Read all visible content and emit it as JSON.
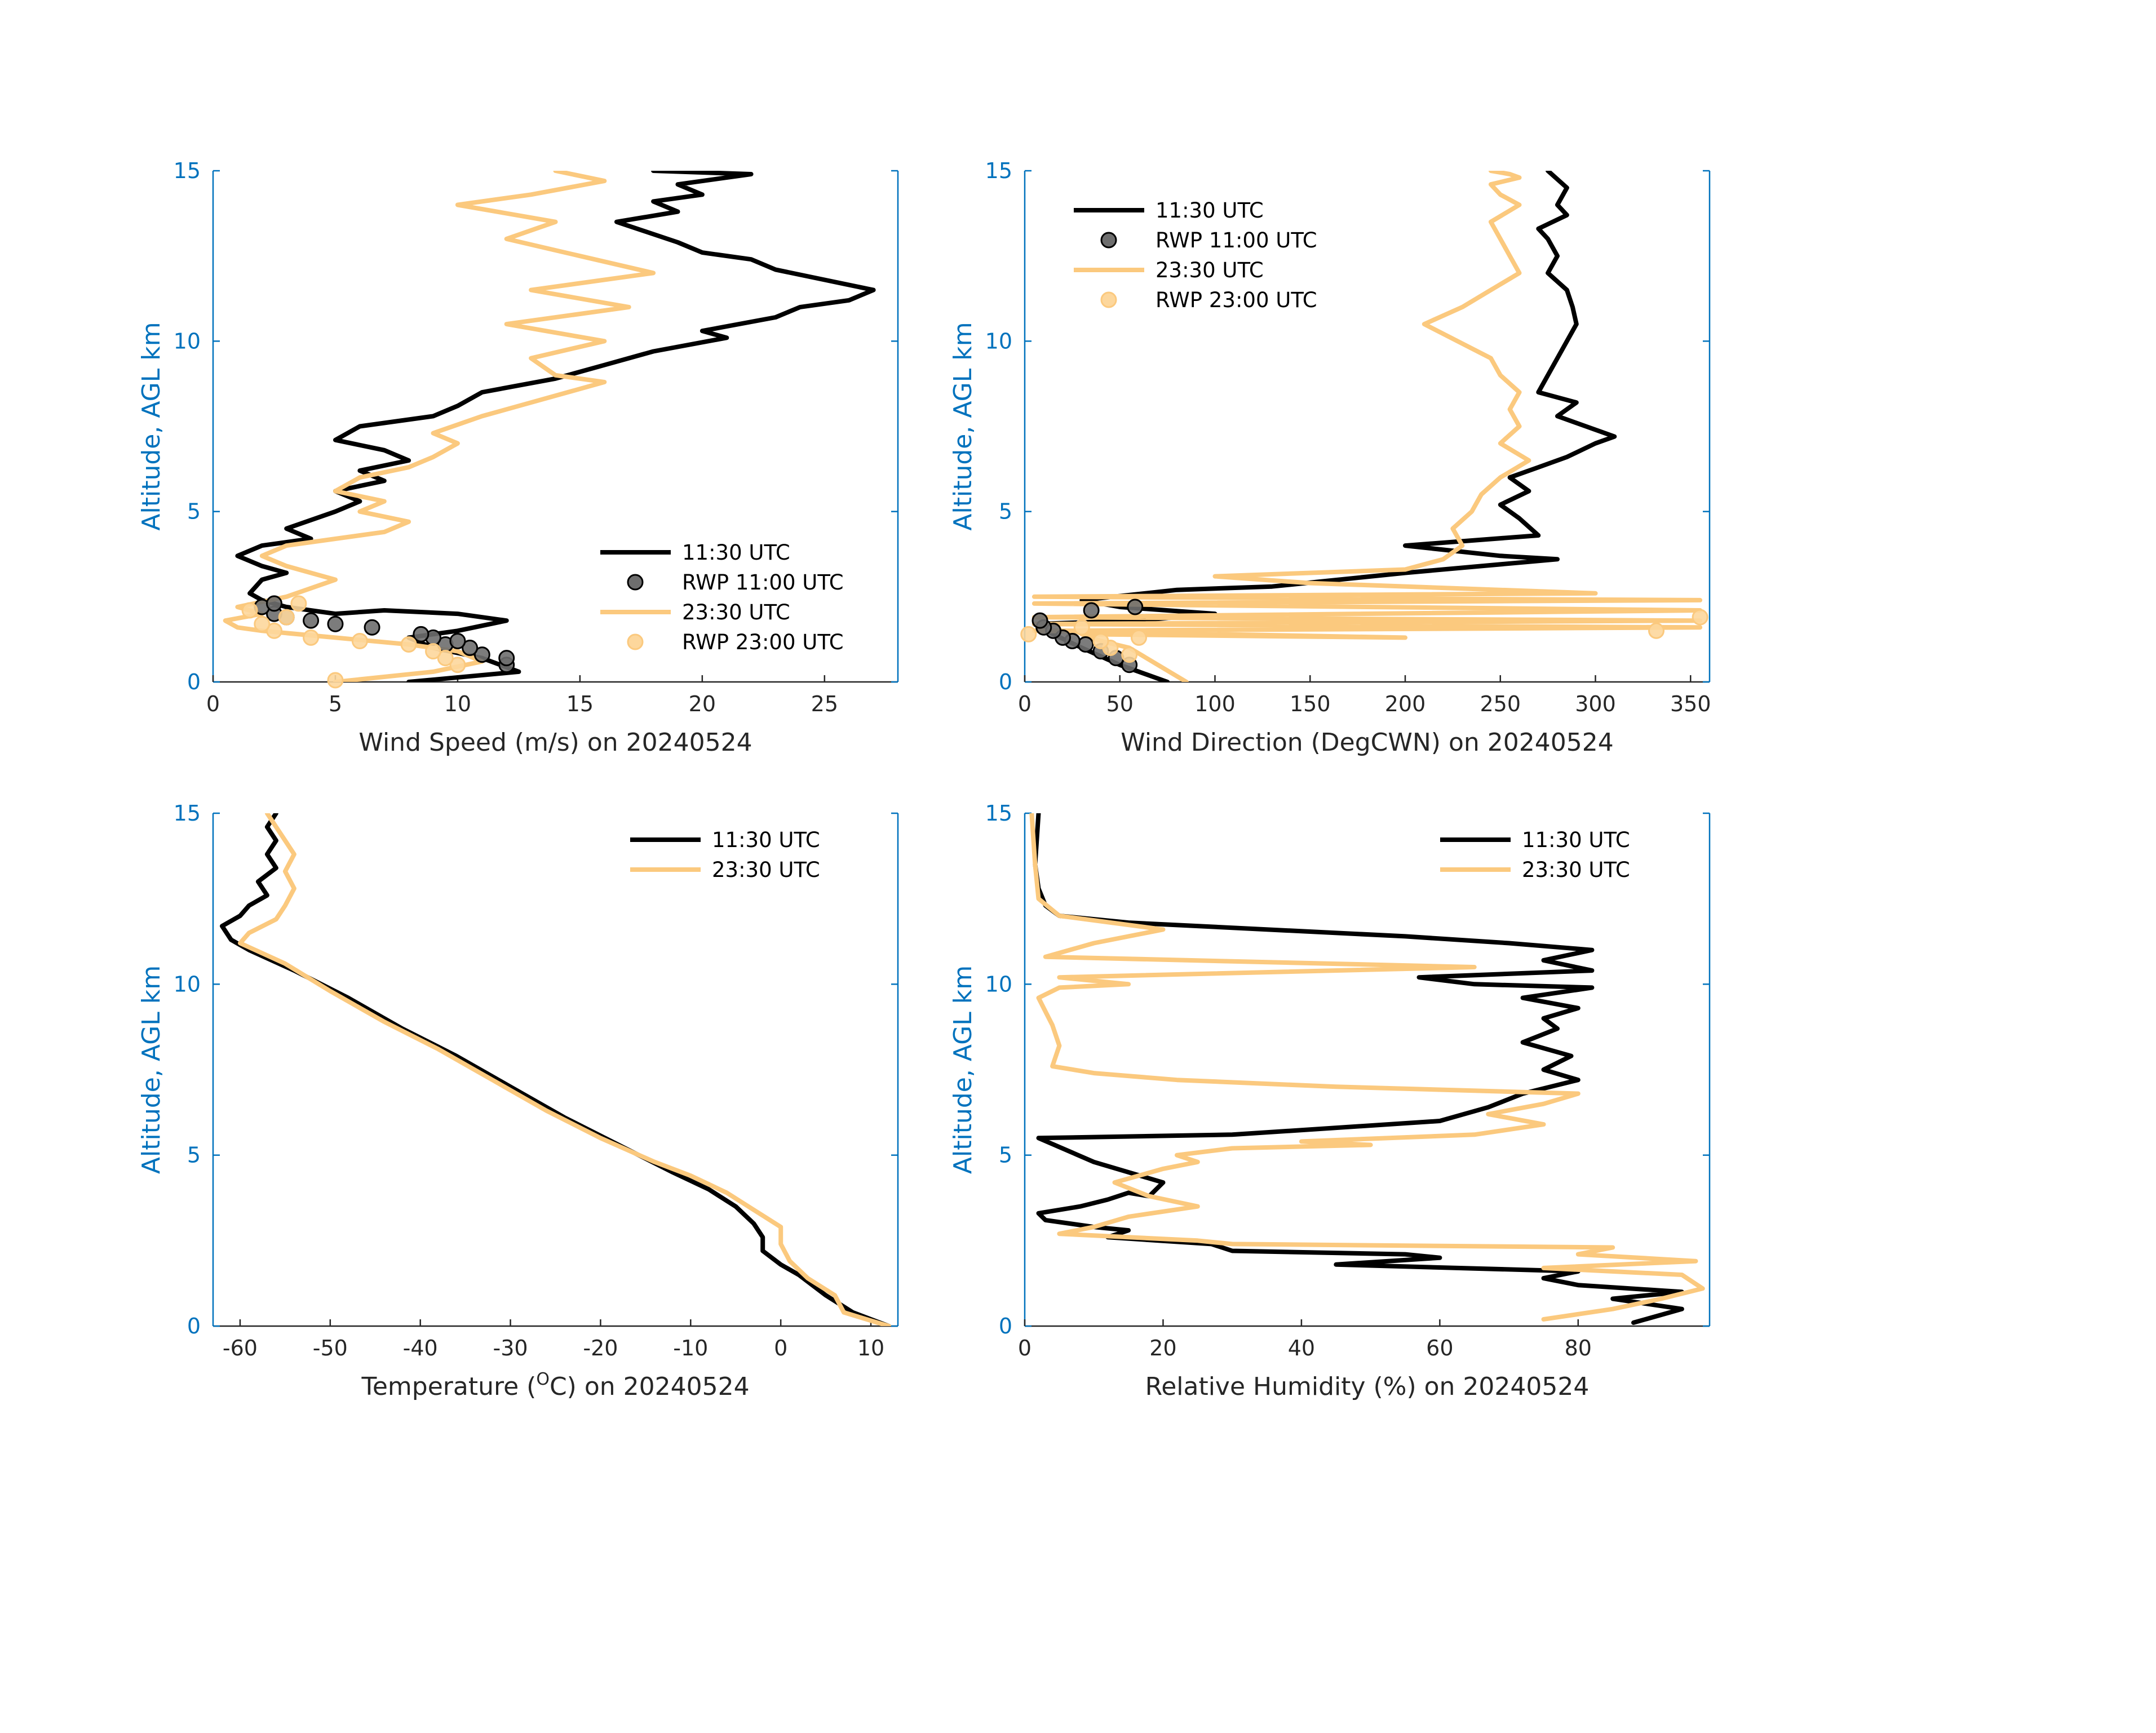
{
  "colors": {
    "black_series": "#000000",
    "orange_series": "#fbc97e",
    "axis_blue": "#0072bd",
    "rwp_black_fill": "#6e6e6e",
    "rwp_orange_fill": "#fdd79c"
  },
  "chart_data": [
    {
      "id": "wind-speed",
      "type": "line",
      "xlabel": "Wind Speed (m/s) on 20240524",
      "ylabel": "Altitude, AGL km",
      "xlim": [
        0,
        28
      ],
      "ylim": [
        0,
        15
      ],
      "xticks": [
        0,
        5,
        10,
        15,
        20,
        25
      ],
      "xtick_labels": [
        "0",
        "5",
        "10",
        "15",
        "20",
        "25"
      ],
      "yticks": [
        0,
        5,
        10,
        15
      ],
      "ytick_labels": [
        "0",
        "5",
        "10",
        "15"
      ],
      "legend": {
        "position": "lower-right",
        "entries": [
          {
            "label": "11:30 UTC",
            "kind": "line",
            "color": "#000000"
          },
          {
            "label": "RWP 11:00 UTC",
            "kind": "marker",
            "color": "#000000",
            "fill": "#6e6e6e"
          },
          {
            "label": "23:30 UTC",
            "kind": "line",
            "color": "#fbc97e"
          },
          {
            "label": "RWP 23:00 UTC",
            "kind": "marker",
            "color": "#fbc97e",
            "fill": "#fdd79c"
          }
        ]
      },
      "series": [
        {
          "name": "11:30 UTC",
          "color": "#000000",
          "x": [
            8,
            12.5,
            11,
            9,
            8,
            10,
            12,
            10,
            7,
            5,
            3,
            2,
            1.5,
            2,
            3,
            2,
            1,
            2,
            4,
            3,
            5,
            6,
            5,
            7,
            6,
            8,
            7,
            5,
            6,
            9,
            10,
            11,
            14,
            16,
            18,
            21,
            20,
            23,
            24,
            26,
            27,
            25,
            23,
            22,
            20,
            19,
            16.5,
            19,
            18,
            20,
            19,
            22,
            18
          ],
          "y": [
            0,
            0.3,
            0.7,
            1.0,
            1.3,
            1.5,
            1.8,
            2.0,
            2.1,
            2.0,
            2.2,
            2.4,
            2.6,
            3.0,
            3.2,
            3.4,
            3.7,
            4.0,
            4.2,
            4.5,
            5.0,
            5.3,
            5.6,
            5.9,
            6.2,
            6.5,
            6.8,
            7.1,
            7.5,
            7.8,
            8.1,
            8.5,
            8.9,
            9.3,
            9.7,
            10.1,
            10.3,
            10.7,
            11.0,
            11.2,
            11.5,
            11.8,
            12.1,
            12.4,
            12.6,
            12.9,
            13.5,
            13.8,
            14.1,
            14.3,
            14.6,
            14.9,
            15
          ]
        },
        {
          "name": "23:30 UTC",
          "color": "#fbc97e",
          "x": [
            5,
            9,
            11,
            10,
            8,
            5,
            2,
            1,
            0.5,
            2,
            1,
            3,
            5,
            3,
            2,
            3,
            5,
            7,
            8,
            6,
            7,
            5,
            6,
            8,
            9,
            10,
            9,
            11,
            13,
            16,
            14,
            13,
            16,
            12,
            17,
            13,
            18,
            15,
            12,
            14,
            10,
            13,
            16,
            14
          ],
          "y": [
            0,
            0.3,
            0.6,
            0.9,
            1.1,
            1.3,
            1.5,
            1.6,
            1.8,
            2.0,
            2.2,
            2.5,
            3.0,
            3.4,
            3.7,
            4.0,
            4.2,
            4.4,
            4.7,
            5.0,
            5.3,
            5.6,
            6.0,
            6.3,
            6.6,
            7.0,
            7.3,
            7.8,
            8.2,
            8.8,
            9.0,
            9.5,
            10.0,
            10.5,
            11.0,
            11.5,
            12.0,
            12.5,
            13.0,
            13.5,
            14.0,
            14.3,
            14.7,
            15
          ]
        }
      ],
      "markers": [
        {
          "name": "RWP 11:00 UTC",
          "color": "#000000",
          "fill": "#6e6e6e",
          "x": [
            12,
            12,
            11,
            10.5,
            9.5,
            10,
            9,
            8.5,
            6.5,
            5,
            4,
            3,
            2.5,
            2,
            2.5
          ],
          "y": [
            0.5,
            0.7,
            0.8,
            1.0,
            1.1,
            1.2,
            1.3,
            1.4,
            1.6,
            1.7,
            1.8,
            1.9,
            2.0,
            2.2,
            2.3
          ]
        },
        {
          "name": "RWP 23:00 UTC",
          "color": "#fbc97e",
          "fill": "#fdd79c",
          "x": [
            5,
            10,
            9.5,
            9,
            8,
            6,
            4,
            2.5,
            2,
            3,
            1.5,
            3.5
          ],
          "y": [
            0.05,
            0.5,
            0.7,
            0.9,
            1.1,
            1.2,
            1.3,
            1.5,
            1.7,
            1.9,
            2.1,
            2.3
          ]
        }
      ]
    },
    {
      "id": "wind-direction",
      "type": "line",
      "xlabel": "Wind Direction (DegCWN) on 20240524",
      "ylabel": "Altitude, AGL km",
      "xlim": [
        0,
        360
      ],
      "ylim": [
        0,
        15
      ],
      "xticks": [
        0,
        50,
        100,
        150,
        200,
        250,
        300,
        350
      ],
      "xtick_labels": [
        "0",
        "50",
        "100",
        "150",
        "200",
        "250",
        "300",
        "350"
      ],
      "yticks": [
        0,
        5,
        10,
        15
      ],
      "ytick_labels": [
        "0",
        "5",
        "10",
        "15"
      ],
      "legend": {
        "position": "upper-left",
        "entries": [
          {
            "label": "11:30 UTC",
            "kind": "line",
            "color": "#000000"
          },
          {
            "label": "RWP 11:00 UTC",
            "kind": "marker",
            "color": "#000000",
            "fill": "#6e6e6e"
          },
          {
            "label": "23:30 UTC",
            "kind": "line",
            "color": "#fbc97e"
          },
          {
            "label": "RWP 23:00 UTC",
            "kind": "marker",
            "color": "#fbc97e",
            "fill": "#fdd79c"
          }
        ]
      },
      "series": [
        {
          "name": "11:30 UTC",
          "color": "#000000",
          "x": [
            75,
            50,
            30,
            15,
            5,
            60,
            100,
            50,
            30,
            80,
            130,
            200,
            280,
            250,
            200,
            270,
            260,
            250,
            265,
            255,
            270,
            285,
            300,
            310,
            295,
            280,
            290,
            270,
            275,
            280,
            285,
            290,
            288,
            285,
            275,
            280,
            275,
            270,
            285,
            280,
            285,
            275
          ],
          "y": [
            0,
            0.5,
            1.0,
            1.4,
            1.7,
            1.8,
            2.0,
            2.2,
            2.4,
            2.7,
            2.8,
            3.2,
            3.6,
            3.7,
            4.0,
            4.3,
            4.8,
            5.2,
            5.6,
            6.0,
            6.3,
            6.6,
            7.0,
            7.2,
            7.5,
            7.8,
            8.2,
            8.5,
            9.0,
            9.5,
            10.0,
            10.5,
            11.0,
            11.5,
            12.0,
            12.5,
            13.0,
            13.3,
            13.7,
            14.0,
            14.5,
            15
          ]
        },
        {
          "name": "23:30 UTC",
          "color": "#fbc97e",
          "x": [
            85,
            70,
            55,
            40,
            30,
            200,
            5,
            355,
            5,
            355,
            5,
            355,
            5,
            355,
            5,
            300,
            150,
            100,
            200,
            220,
            230,
            225,
            235,
            240,
            250,
            265,
            250,
            260,
            255,
            260,
            250,
            245,
            210,
            230,
            245,
            260,
            255,
            250,
            245,
            260,
            250,
            245,
            260,
            255,
            245
          ],
          "y": [
            0,
            0.5,
            1.0,
            1.2,
            1.4,
            1.3,
            1.5,
            1.6,
            1.7,
            1.8,
            1.9,
            2.1,
            2.3,
            2.4,
            2.5,
            2.6,
            2.9,
            3.1,
            3.3,
            3.6,
            4.0,
            4.5,
            5.0,
            5.5,
            6.0,
            6.5,
            7.0,
            7.5,
            8.0,
            8.5,
            9.0,
            9.5,
            10.5,
            11.0,
            11.5,
            12.0,
            12.5,
            13.0,
            13.5,
            14.0,
            14.3,
            14.6,
            14.8,
            14.9,
            15
          ]
        }
      ],
      "markers": [
        {
          "name": "RWP 11:00 UTC",
          "color": "#000000",
          "fill": "#6e6e6e",
          "x": [
            55,
            48,
            40,
            32,
            25,
            20,
            15,
            10,
            8,
            35,
            58
          ],
          "y": [
            0.5,
            0.7,
            0.9,
            1.1,
            1.2,
            1.3,
            1.5,
            1.6,
            1.8,
            2.1,
            2.2
          ]
        },
        {
          "name": "RWP 23:00 UTC",
          "color": "#fbc97e",
          "fill": "#fdd79c",
          "x": [
            2,
            55,
            45,
            40,
            60,
            30,
            332,
            355
          ],
          "y": [
            1.4,
            0.8,
            1.0,
            1.2,
            1.3,
            1.6,
            1.5,
            1.9
          ]
        }
      ]
    },
    {
      "id": "temperature",
      "type": "line",
      "xlabel_prefix": "Temperature (",
      "xlabel_sup": "O",
      "xlabel_suffix": "C) on 20240524",
      "ylabel": "Altitude, AGL km",
      "xlim": [
        -63,
        13
      ],
      "ylim": [
        0,
        15
      ],
      "xticks": [
        -60,
        -50,
        -40,
        -30,
        -20,
        -10,
        0,
        10
      ],
      "xtick_labels": [
        "-60",
        "-50",
        "-40",
        "-30",
        "-20",
        "-10",
        "0",
        "10"
      ],
      "yticks": [
        0,
        5,
        10,
        15
      ],
      "ytick_labels": [
        "0",
        "5",
        "10",
        "15"
      ],
      "legend": {
        "position": "upper-right",
        "entries": [
          {
            "label": "11:30 UTC",
            "kind": "line",
            "color": "#000000"
          },
          {
            "label": "23:30 UTC",
            "kind": "line",
            "color": "#fbc97e"
          }
        ]
      },
      "series": [
        {
          "name": "11:30 UTC",
          "color": "#000000",
          "x": [
            12,
            8,
            5,
            2,
            0,
            -2,
            -2,
            -3,
            -5,
            -8,
            -12,
            -18,
            -24,
            -30,
            -36,
            -42,
            -48,
            -54,
            -59,
            -61,
            -62,
            -60,
            -59,
            -57,
            -58,
            -56,
            -57,
            -56,
            -57,
            -56
          ],
          "y": [
            0,
            0.4,
            0.9,
            1.5,
            1.8,
            2.2,
            2.6,
            3.0,
            3.5,
            4.0,
            4.5,
            5.3,
            6.1,
            7.0,
            7.9,
            8.7,
            9.6,
            10.4,
            11.0,
            11.3,
            11.7,
            12.0,
            12.3,
            12.6,
            13.0,
            13.4,
            13.8,
            14.2,
            14.6,
            15
          ]
        },
        {
          "name": "23:30 UTC",
          "color": "#fbc97e",
          "x": [
            12,
            7,
            6,
            3,
            1,
            0,
            0,
            -3,
            -6,
            -10,
            -14,
            -20,
            -26,
            -32,
            -38,
            -44,
            -50,
            -55,
            -60,
            -59,
            -56,
            -55,
            -54,
            -55,
            -54,
            -55,
            -56,
            -57
          ],
          "y": [
            0,
            0.4,
            0.9,
            1.4,
            1.9,
            2.4,
            2.9,
            3.4,
            3.9,
            4.4,
            4.8,
            5.5,
            6.3,
            7.2,
            8.1,
            8.9,
            9.8,
            10.6,
            11.2,
            11.5,
            11.9,
            12.3,
            12.8,
            13.3,
            13.8,
            14.2,
            14.6,
            15
          ]
        }
      ]
    },
    {
      "id": "relative-humidity",
      "type": "line",
      "xlabel": "Relative Humidity (%) on 20240524",
      "ylabel": "Altitude, AGL km",
      "xlim": [
        0,
        99
      ],
      "ylim": [
        0,
        15
      ],
      "xticks": [
        0,
        20,
        40,
        60,
        80
      ],
      "xtick_labels": [
        "0",
        "20",
        "40",
        "60",
        "80"
      ],
      "yticks": [
        0,
        5,
        10,
        15
      ],
      "ytick_labels": [
        "0",
        "5",
        "10",
        "15"
      ],
      "legend": {
        "position": "upper-right",
        "entries": [
          {
            "label": "11:30 UTC",
            "kind": "line",
            "color": "#000000"
          },
          {
            "label": "23:30 UTC",
            "kind": "line",
            "color": "#fbc97e"
          }
        ]
      },
      "series": [
        {
          "name": "11:30 UTC",
          "color": "#000000",
          "x": [
            88,
            95,
            85,
            95,
            80,
            75,
            80,
            45,
            60,
            55,
            30,
            27,
            12,
            15,
            10,
            3,
            2,
            8,
            12,
            15,
            18,
            20,
            10,
            2,
            30,
            60,
            67,
            72,
            80,
            75,
            79,
            72,
            77,
            75,
            80,
            72,
            82,
            65,
            57,
            82,
            75,
            82,
            70,
            55,
            15,
            5,
            3,
            2,
            1.5,
            2
          ],
          "y": [
            0.1,
            0.5,
            0.8,
            1.0,
            1.2,
            1.4,
            1.6,
            1.8,
            2.0,
            2.1,
            2.2,
            2.4,
            2.6,
            2.8,
            2.9,
            3.1,
            3.3,
            3.5,
            3.7,
            3.9,
            3.8,
            4.2,
            4.8,
            5.5,
            5.6,
            6.0,
            6.4,
            6.8,
            7.2,
            7.5,
            7.9,
            8.3,
            8.7,
            9.0,
            9.3,
            9.6,
            9.9,
            10.0,
            10.2,
            10.4,
            10.7,
            11.0,
            11.2,
            11.4,
            11.8,
            12.0,
            12.3,
            12.8,
            13.5,
            15
          ]
        },
        {
          "name": "23:30 UTC",
          "color": "#fbc97e",
          "x": [
            75,
            85,
            92,
            98,
            95,
            75,
            97,
            80,
            85,
            30,
            25,
            5,
            10,
            15,
            25,
            18,
            13,
            20,
            25,
            22,
            30,
            50,
            40,
            65,
            75,
            67,
            75,
            80,
            45,
            22,
            10,
            4,
            5,
            4,
            3,
            2,
            5,
            15,
            5,
            65,
            3,
            10,
            20,
            5,
            2,
            1.5,
            1
          ],
          "y": [
            0.2,
            0.5,
            0.8,
            1.1,
            1.5,
            1.7,
            1.9,
            2.1,
            2.3,
            2.4,
            2.5,
            2.7,
            2.9,
            3.2,
            3.5,
            3.8,
            4.2,
            4.6,
            4.8,
            5.0,
            5.2,
            5.3,
            5.4,
            5.6,
            5.9,
            6.2,
            6.5,
            6.8,
            7.0,
            7.2,
            7.4,
            7.6,
            8.2,
            8.8,
            9.2,
            9.6,
            9.9,
            10.0,
            10.2,
            10.5,
            10.8,
            11.2,
            11.6,
            12.0,
            12.5,
            13.5,
            15
          ]
        }
      ]
    }
  ]
}
